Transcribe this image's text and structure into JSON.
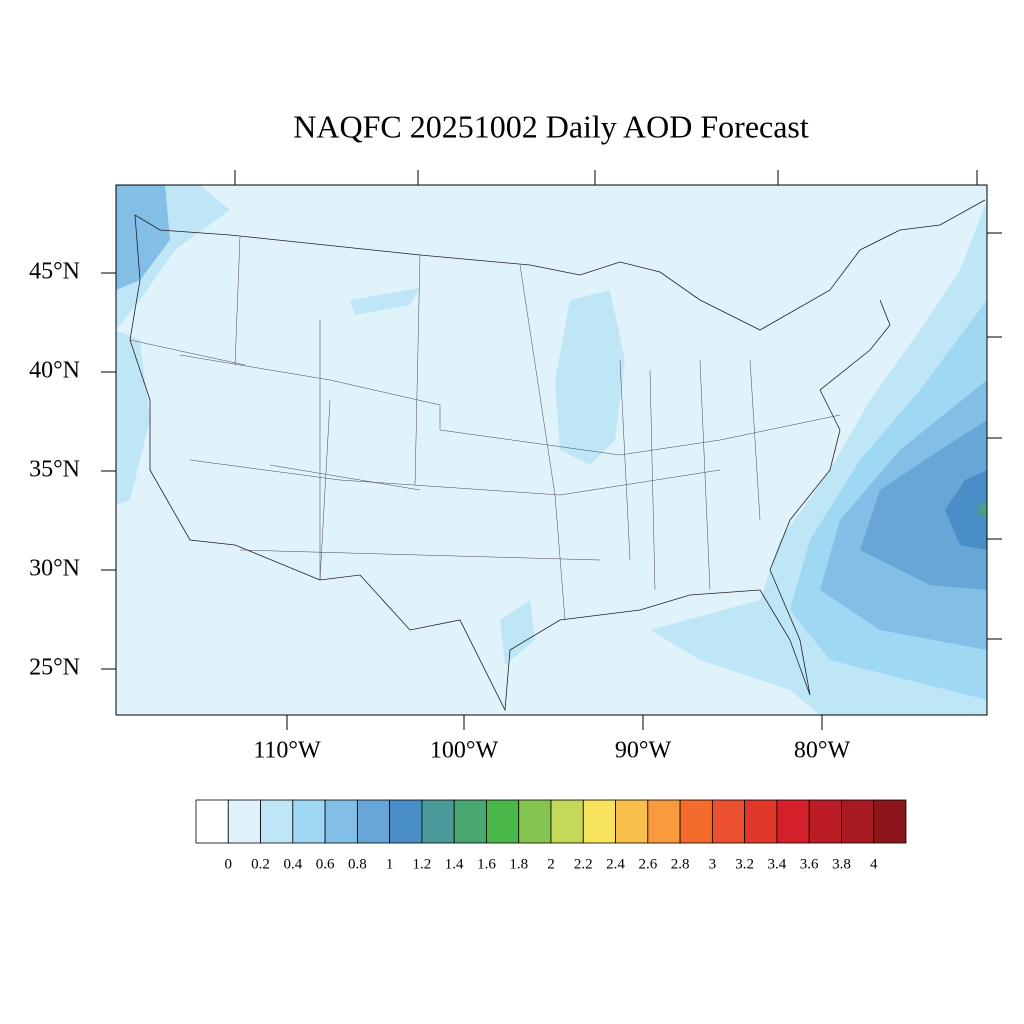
{
  "title": "NAQFC 20251002 Daily AOD Forecast",
  "lat_labels": [
    "45°N",
    "40°N",
    "35°N",
    "30°N",
    "25°N"
  ],
  "lon_labels": [
    "110°W",
    "100°W",
    "90°W",
    "80°W"
  ],
  "colorbar": {
    "colors": [
      "#ffffff",
      "#e0f3fb",
      "#bfe6f7",
      "#9ed8f3",
      "#82bee6",
      "#68a6d8",
      "#4a8ec8",
      "#4a9a9a",
      "#48a870",
      "#4ab848",
      "#86c450",
      "#c4d85a",
      "#f8e45c",
      "#f8c04a",
      "#f89a3e",
      "#f46c2c",
      "#ec5030",
      "#e0382a",
      "#d42028",
      "#bc1c24",
      "#a81a22",
      "#8c161c"
    ],
    "labels": [
      0,
      0.2,
      0.4,
      0.6,
      0.8,
      1,
      1.2,
      1.4,
      1.6,
      1.8,
      2,
      2.2,
      2.4,
      2.6,
      2.8,
      3,
      3.2,
      3.4,
      3.6,
      3.8,
      4
    ]
  }
}
